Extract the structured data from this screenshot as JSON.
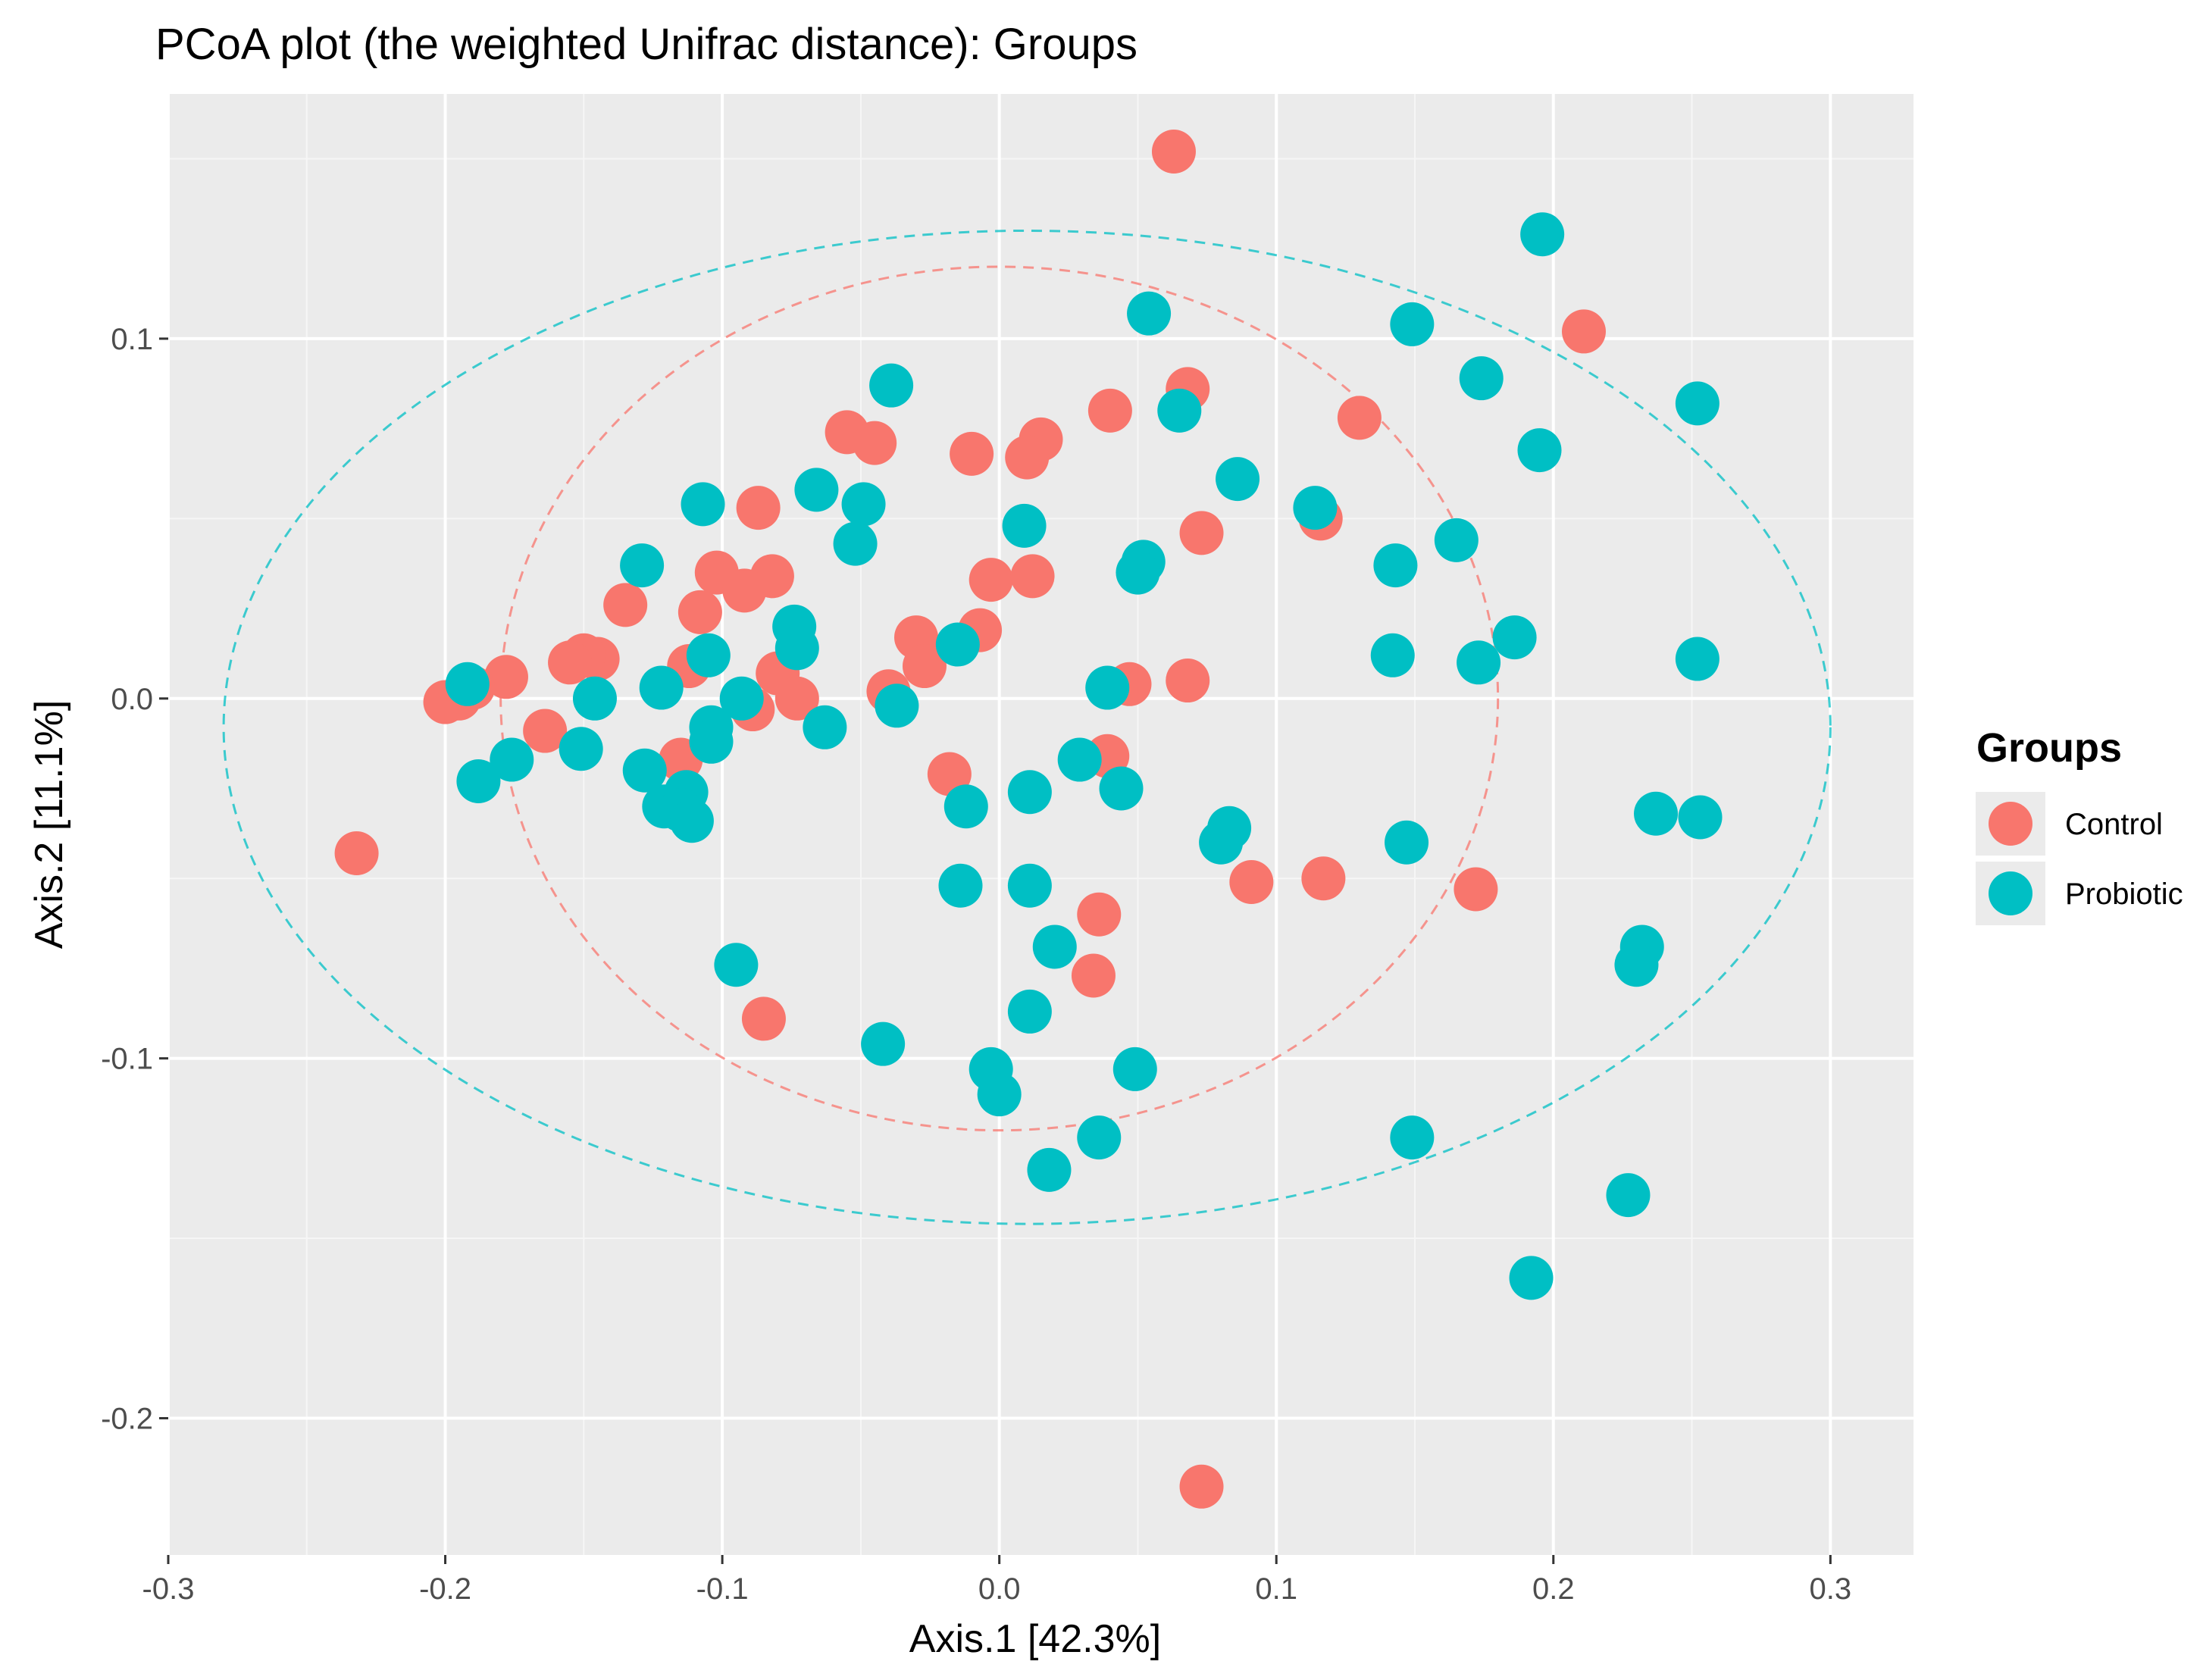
{
  "chart_data": {
    "type": "scatter",
    "title": "PCoA plot (the weighted Unifrac distance): Groups",
    "xlabel": "Axis.1   [42.3%]",
    "ylabel": "Axis.2   [11.1%]",
    "xlim": [
      -0.3,
      0.33
    ],
    "ylim": [
      -0.238,
      0.168
    ],
    "x_ticks": [
      -0.3,
      -0.2,
      -0.1,
      0.0,
      0.1,
      0.2,
      0.3
    ],
    "x_tick_labels": [
      "-0.3",
      "-0.2",
      "-0.1",
      "0.0",
      "0.1",
      "0.2",
      "0.3"
    ],
    "y_ticks": [
      -0.2,
      -0.1,
      0.0,
      0.1
    ],
    "y_tick_labels": [
      "-0.2",
      "-0.1",
      "0.0",
      "0.1"
    ],
    "grid": true,
    "legend": {
      "title": "Groups",
      "position": "right"
    },
    "series": [
      {
        "name": "Control",
        "color": "#F8766D",
        "points": [
          [
            0.063,
            0.152
          ],
          [
            0.211,
            0.102
          ],
          [
            0.068,
            0.086
          ],
          [
            0.13,
            0.078
          ],
          [
            0.04,
            0.08
          ],
          [
            0.015,
            0.072
          ],
          [
            0.01,
            0.067
          ],
          [
            -0.01,
            0.068
          ],
          [
            -0.055,
            0.074
          ],
          [
            -0.045,
            0.071
          ],
          [
            -0.087,
            0.053
          ],
          [
            -0.102,
            0.035
          ],
          [
            -0.082,
            0.034
          ],
          [
            -0.092,
            0.03
          ],
          [
            -0.135,
            0.026
          ],
          [
            -0.108,
            0.024
          ],
          [
            -0.003,
            0.033
          ],
          [
            0.012,
            0.034
          ],
          [
            0.073,
            0.046
          ],
          [
            0.116,
            0.05
          ],
          [
            -0.03,
            0.017
          ],
          [
            -0.007,
            0.019
          ],
          [
            -0.027,
            0.009
          ],
          [
            -0.04,
            0.002
          ],
          [
            -0.112,
            0.009
          ],
          [
            -0.145,
            0.011
          ],
          [
            -0.15,
            0.012
          ],
          [
            -0.155,
            0.01
          ],
          [
            -0.178,
            0.006
          ],
          [
            -0.19,
            0.003
          ],
          [
            -0.195,
            0.0
          ],
          [
            -0.2,
            -0.001
          ],
          [
            -0.08,
            0.007
          ],
          [
            -0.073,
            0.0
          ],
          [
            -0.089,
            -0.003
          ],
          [
            -0.164,
            -0.009
          ],
          [
            0.047,
            0.004
          ],
          [
            0.068,
            0.005
          ],
          [
            -0.115,
            -0.017
          ],
          [
            -0.018,
            -0.021
          ],
          [
            0.039,
            -0.016
          ],
          [
            -0.232,
            -0.043
          ],
          [
            0.091,
            -0.051
          ],
          [
            0.117,
            -0.05
          ],
          [
            0.172,
            -0.053
          ],
          [
            0.036,
            -0.06
          ],
          [
            0.034,
            -0.077
          ],
          [
            -0.085,
            -0.089
          ],
          [
            0.073,
            -0.219
          ]
        ]
      },
      {
        "name": "Probiotic",
        "color": "#00BFC4",
        "points": [
          [
            0.196,
            0.129
          ],
          [
            0.054,
            0.107
          ],
          [
            0.149,
            0.104
          ],
          [
            0.174,
            0.089
          ],
          [
            0.252,
            0.082
          ],
          [
            0.065,
            0.08
          ],
          [
            0.195,
            0.069
          ],
          [
            -0.039,
            0.087
          ],
          [
            0.086,
            0.061
          ],
          [
            0.114,
            0.053
          ],
          [
            -0.066,
            0.058
          ],
          [
            -0.049,
            0.054
          ],
          [
            -0.107,
            0.054
          ],
          [
            0.009,
            0.048
          ],
          [
            -0.052,
            0.043
          ],
          [
            0.165,
            0.044
          ],
          [
            0.143,
            0.037
          ],
          [
            0.052,
            0.038
          ],
          [
            0.05,
            0.035
          ],
          [
            -0.129,
            0.037
          ],
          [
            -0.074,
            0.02
          ],
          [
            -0.073,
            0.014
          ],
          [
            -0.015,
            0.015
          ],
          [
            0.142,
            0.012
          ],
          [
            0.173,
            0.01
          ],
          [
            0.186,
            0.017
          ],
          [
            0.252,
            0.011
          ],
          [
            -0.105,
            0.012
          ],
          [
            -0.122,
            0.003
          ],
          [
            0.039,
            0.003
          ],
          [
            -0.146,
            0.0
          ],
          [
            -0.093,
            0.0
          ],
          [
            -0.037,
            -0.002
          ],
          [
            -0.063,
            -0.008
          ],
          [
            -0.104,
            -0.008
          ],
          [
            -0.192,
            0.004
          ],
          [
            -0.104,
            -0.012
          ],
          [
            -0.151,
            -0.014
          ],
          [
            -0.176,
            -0.017
          ],
          [
            -0.188,
            -0.023
          ],
          [
            -0.128,
            -0.02
          ],
          [
            -0.113,
            -0.026
          ],
          [
            -0.121,
            -0.03
          ],
          [
            -0.115,
            -0.031
          ],
          [
            -0.111,
            -0.034
          ],
          [
            0.029,
            -0.017
          ],
          [
            0.011,
            -0.026
          ],
          [
            0.044,
            -0.025
          ],
          [
            -0.012,
            -0.03
          ],
          [
            0.237,
            -0.032
          ],
          [
            0.253,
            -0.033
          ],
          [
            0.083,
            -0.036
          ],
          [
            0.08,
            -0.04
          ],
          [
            0.147,
            -0.04
          ],
          [
            -0.014,
            -0.052
          ],
          [
            0.011,
            -0.052
          ],
          [
            0.02,
            -0.069
          ],
          [
            0.232,
            -0.069
          ],
          [
            0.23,
            -0.074
          ],
          [
            -0.095,
            -0.074
          ],
          [
            0.011,
            -0.087
          ],
          [
            -0.042,
            -0.096
          ],
          [
            -0.003,
            -0.103
          ],
          [
            0.049,
            -0.103
          ],
          [
            0.0,
            -0.11
          ],
          [
            0.036,
            -0.122
          ],
          [
            0.149,
            -0.122
          ],
          [
            0.018,
            -0.131
          ],
          [
            0.227,
            -0.138
          ],
          [
            0.192,
            -0.161
          ]
        ]
      }
    ],
    "ellipses": [
      {
        "series": "Control",
        "center": [
          0.0,
          0.0
        ],
        "radii": [
          0.18,
          0.12
        ],
        "style": "dashed"
      },
      {
        "series": "Probiotic",
        "center": [
          0.01,
          -0.008
        ],
        "radii": [
          0.29,
          0.138
        ],
        "style": "dashed"
      }
    ]
  }
}
